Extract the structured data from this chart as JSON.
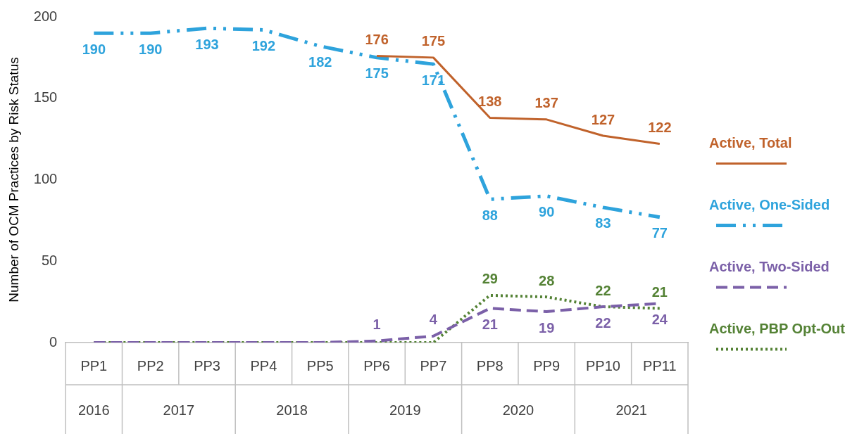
{
  "chart_data": {
    "type": "line",
    "ylabel": "Number of OCM Practices by Risk Status",
    "categories": [
      "PP1",
      "PP2",
      "PP3",
      "PP4",
      "PP5",
      "PP6",
      "PP7",
      "PP8",
      "PP9",
      "PP10",
      "PP11"
    ],
    "ylim": [
      0,
      200
    ],
    "yticks": [
      0,
      50,
      100,
      150,
      200
    ],
    "grid": false,
    "legend": "right",
    "marker": "none",
    "series": [
      {
        "name": "Active, Total",
        "color": "#c0622b",
        "line_style": "solid",
        "values": [
          null,
          null,
          null,
          null,
          null,
          176,
          175,
          138,
          137,
          127,
          122
        ],
        "value_labels": [
          null,
          null,
          null,
          null,
          null,
          "176",
          "175",
          "138",
          "137",
          "127",
          "122"
        ]
      },
      {
        "name": "Active, One-Sided",
        "color": "#2ea3dc",
        "line_style": "dashdot",
        "values": [
          190,
          190,
          193,
          192,
          182,
          175,
          171,
          88,
          90,
          83,
          77
        ],
        "value_labels": [
          "190",
          "190",
          "193",
          "192",
          "182",
          "175",
          "171",
          "88",
          "90",
          "83",
          "77"
        ]
      },
      {
        "name": "Active, Two-Sided",
        "color": "#7b60a8",
        "line_style": "dashed",
        "values": [
          0,
          0,
          0,
          0,
          0,
          1,
          4,
          21,
          19,
          22,
          24
        ],
        "value_labels": [
          null,
          null,
          null,
          null,
          null,
          "1",
          "4",
          "21",
          "19",
          "22",
          "24"
        ]
      },
      {
        "name": "Active, PBP Opt-Out",
        "color": "#548235",
        "line_style": "dotted",
        "values": [
          0,
          0,
          0,
          0,
          0,
          0,
          0,
          29,
          28,
          22,
          21
        ],
        "value_labels": [
          null,
          null,
          null,
          null,
          null,
          null,
          null,
          "29",
          "28",
          "22",
          "21"
        ]
      }
    ],
    "annotations": [
      "2016",
      "2017",
      "2018",
      "2019",
      "2020",
      "2021"
    ]
  }
}
